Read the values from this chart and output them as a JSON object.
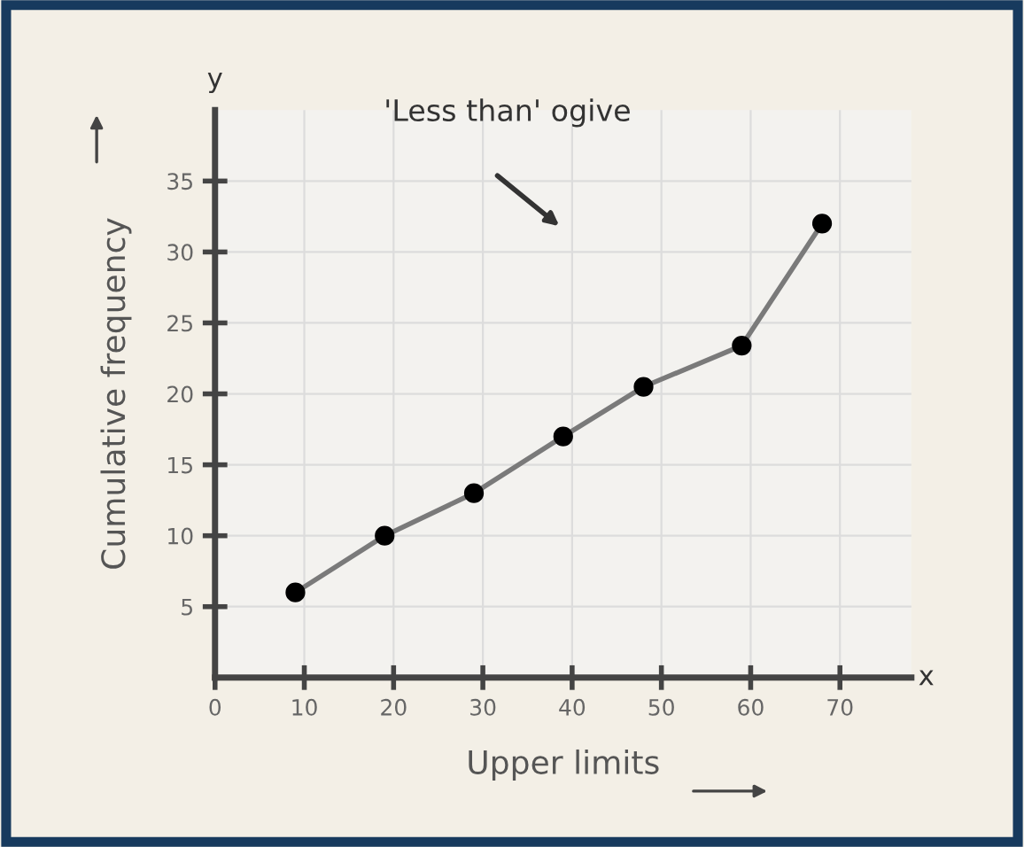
{
  "chart_data": {
    "type": "line",
    "xlabel": "Upper limits",
    "ylabel": "Cumulative frequency",
    "annotations": [
      "'Less than' ogive",
      "x",
      "y"
    ],
    "x": [
      9,
      19,
      29,
      39,
      48,
      59,
      68
    ],
    "series": [
      {
        "color": "#7a7a7a",
        "values": [
          6,
          10,
          13,
          17,
          20.5,
          23.4,
          32
        ]
      }
    ],
    "xlim": [
      0,
      78
    ],
    "ylim": [
      0,
      40
    ],
    "xticks": [
      {
        "value": 0,
        "label": "0"
      },
      10,
      20,
      30,
      40,
      50,
      60,
      70
    ],
    "yticks": [
      5,
      10,
      15,
      20,
      25,
      30,
      35
    ],
    "marker": "circle",
    "line_style": "solid",
    "grid": true
  }
}
